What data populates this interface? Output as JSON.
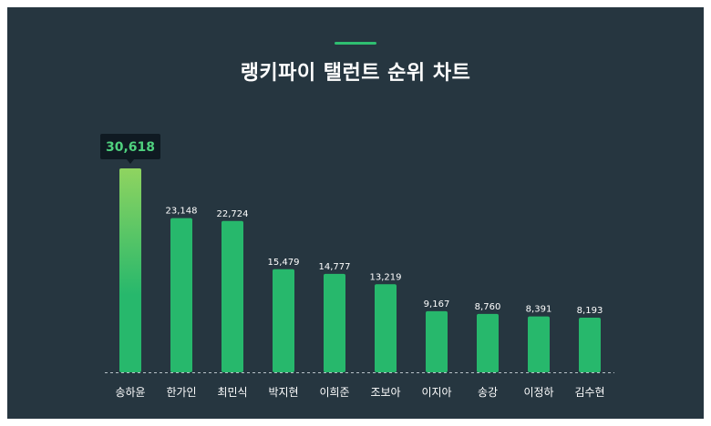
{
  "chart_data": {
    "type": "bar",
    "title": "랭키파이 탤런트 순위 차트",
    "categories": [
      "송하윤",
      "한가인",
      "최민식",
      "박지현",
      "이희준",
      "조보아",
      "이지아",
      "송강",
      "이정하",
      "김수현"
    ],
    "values": [
      30618,
      23148,
      22724,
      15479,
      14777,
      13219,
      9167,
      8760,
      8391,
      8193
    ],
    "value_labels": [
      "30,618",
      "23,148",
      "22,724",
      "15,479",
      "14,777",
      "13,219",
      "9,167",
      "8,760",
      "8,391",
      "8,193"
    ],
    "ylim": [
      0,
      30618
    ],
    "grid": false,
    "highlight_index": 0,
    "colors": {
      "background": "#263640",
      "bar": "#27b86c",
      "bar_highlight_top": "#8fd460",
      "accent": "#2fbf71",
      "tooltip_bg": "#0f1a22",
      "tooltip_text": "#4fd17e",
      "baseline": "#b8c2c8"
    }
  }
}
